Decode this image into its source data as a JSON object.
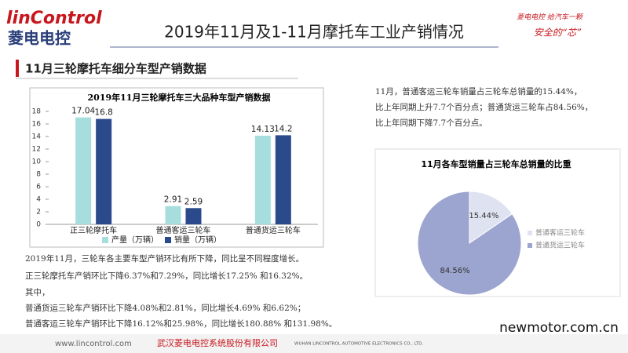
{
  "header": {
    "logo_en": "linControl",
    "logo_cn": "菱电电控",
    "title": "2019年11月及1-11月摩托车工业产销情况",
    "slogan": [
      "菱电电控 给汽车一颗",
      "安全的“芯”"
    ]
  },
  "section_title": "11月三轮摩托车细分车型产销数据",
  "right_text": [
    "11月，普通客运三轮车销量占三轮车总销量的15.44%，",
    "比上年同期上升7.7个百分点；普通货运三轮车占84.56%，",
    "比上年同期下降7.7个百分点。"
  ],
  "bottom_text": [
    "2019年11月，三轮车各主要车型产销环比有所下降，同比呈不同程度增长。",
    "正三轮摩托车产销环比下降6.37%和7.29%，同比增长17.25% 和16.32%。",
    "其中，",
    "普通货运三轮车产销环比下降4.08%和2.81%，同比增长4.69% 和6.62%；",
    "普通客运三轮车产销环比下降16.12%和25.98%，同比增长180.88% 和131.98%。"
  ],
  "footer": {
    "url": "www.lincontrol.com",
    "company_cn": "武汉菱电电控系统股份有限公司",
    "company_en": "WUHAN LINCONTROL AUTOMOTIVE ELECTRONICS CO., LTD.",
    "watermark": "newmotor.com.cn"
  },
  "chart_data": [
    {
      "type": "bar",
      "title": "2019年11月三轮摩托车三大品种车型产销数据",
      "categories": [
        "正三轮摩托车",
        "普通客运三轮车",
        "普通货运三轮车"
      ],
      "series": [
        {
          "name": "产量（万辆）",
          "color": "#a6dede",
          "values": [
            17.04,
            2.91,
            14.13
          ]
        },
        {
          "name": "销量（万辆）",
          "color": "#2b4a8c",
          "values": [
            16.8,
            2.59,
            14.2
          ]
        }
      ],
      "ylim": [
        0,
        18
      ],
      "yticks": [
        0,
        2,
        4,
        6,
        8,
        10,
        12,
        14,
        16,
        18
      ],
      "grid": false,
      "legend": "bottom"
    },
    {
      "type": "pie",
      "title": "11月各车型销量占三轮车总销量的比重",
      "categories": [
        "普通客运三轮车",
        "普通货运三轮车"
      ],
      "values": [
        15.44,
        84.56
      ],
      "value_labels": [
        "15.44%",
        "84.56%"
      ],
      "colors": [
        "#dfe2f0",
        "#9ca5cf"
      ],
      "legend": "right"
    }
  ]
}
